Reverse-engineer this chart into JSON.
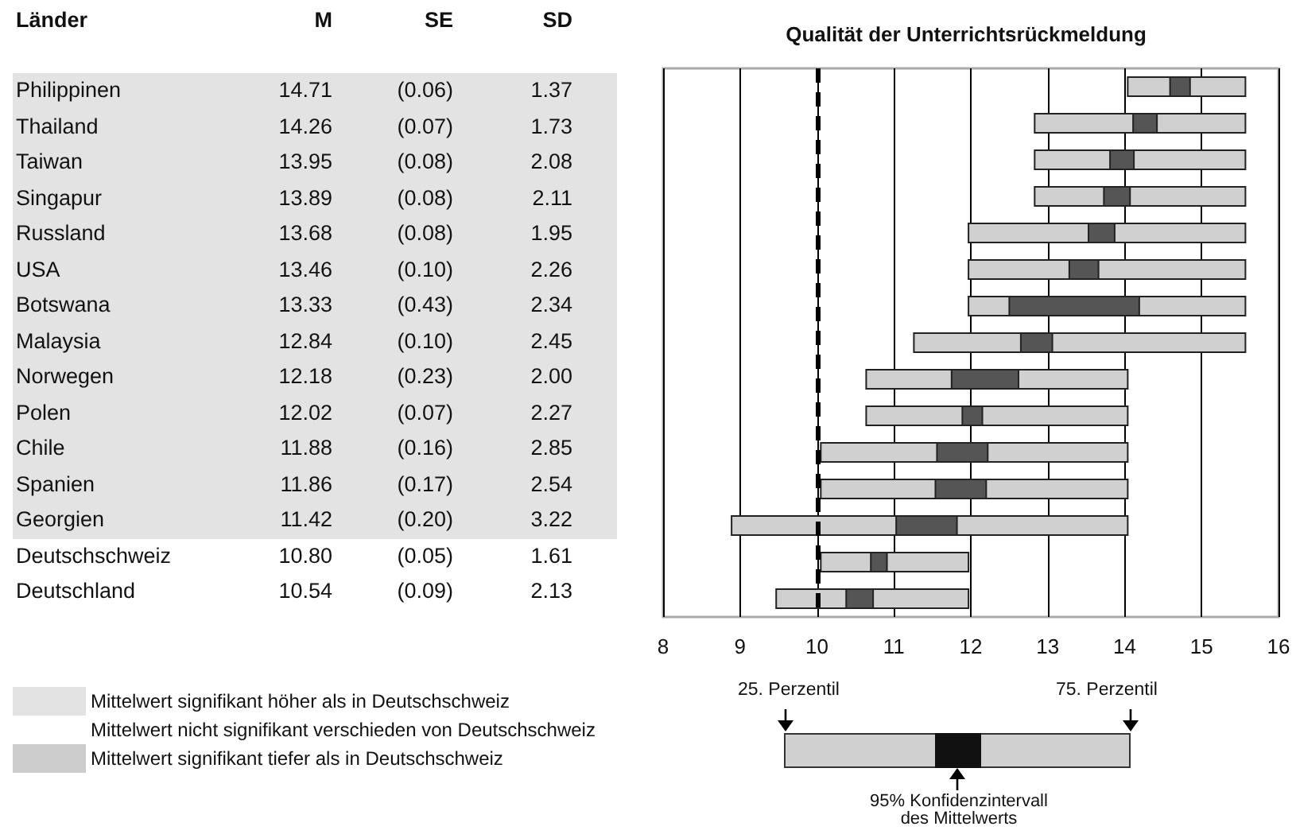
{
  "chart_data": [
    {
      "type": "other",
      "ylabel": "Länder",
      "categories": [
        "Philippinen",
        "Thailand",
        "Taiwan",
        "Singapur",
        "Russland",
        "USA",
        "Botswana",
        "Malaysia",
        "Norwegen",
        "Polen",
        "Chile",
        "Spanien",
        "Georgien",
        "Deutschschweiz",
        "Deutschland"
      ],
      "series": [
        {
          "name": "M",
          "colors": [
            "#e3e3e3",
            "#e3e3e3",
            "#e3e3e3",
            "#e3e3e3",
            "#e3e3e3",
            "#e3e3e3",
            "#e3e3e3",
            "#e3e3e3",
            "#e3e3e3",
            "#e3e3e3",
            "#e3e3e3",
            "#e3e3e3",
            "#e3e3e3",
            "#ffffff",
            "#ffffff"
          ],
          "values": [
            14.71,
            14.26,
            13.95,
            13.89,
            13.68,
            13.46,
            13.33,
            12.84,
            12.18,
            12.02,
            11.88,
            11.86,
            11.42,
            10.8,
            10.54
          ],
          "value_labels": [
            "14.71",
            "14.26",
            "13.95",
            "13.89",
            "13.68",
            "13.46",
            "13.33",
            "12.84",
            "12.18",
            "12.02",
            "11.88",
            "11.86",
            "11.42",
            "10.80",
            "10.54"
          ]
        },
        {
          "name": "SE",
          "values": [
            0.06,
            0.07,
            0.08,
            0.08,
            0.08,
            0.1,
            0.43,
            0.1,
            0.23,
            0.07,
            0.16,
            0.17,
            0.2,
            0.05,
            0.09
          ],
          "value_labels": [
            "(0.06)",
            "(0.07)",
            "(0.08)",
            "(0.08)",
            "(0.08)",
            "(0.10)",
            "(0.43)",
            "(0.10)",
            "(0.23)",
            "(0.07)",
            "(0.16)",
            "(0.17)",
            "(0.20)",
            "(0.05)",
            "(0.09)"
          ]
        },
        {
          "name": "SD",
          "values": [
            1.37,
            1.73,
            2.08,
            2.11,
            1.95,
            2.26,
            2.34,
            2.45,
            2,
            2.27,
            2.85,
            2.54,
            3.22,
            1.61,
            2.13
          ],
          "value_labels": [
            "1.37",
            "1.73",
            "2.08",
            "2.11",
            "1.95",
            "2.26",
            "2.34",
            "2.45",
            "2.00",
            "2.27",
            "2.85",
            "2.54",
            "3.22",
            "1.61",
            "2.13"
          ]
        }
      ],
      "annotations": [
        "Mittelwert signifikant höher als in Deutschschweiz",
        "Mittelwert nicht signifikant verschieden von Deutschschweiz",
        "Mittelwert signifikant tiefer als in Deutschschweiz"
      ]
    },
    {
      "type": "bar",
      "orientation": "horizontal",
      "title": "Qualität der Unterrichtsrückmeldung",
      "categories": [
        null,
        null,
        null,
        null,
        null,
        null,
        null,
        null,
        null,
        null,
        null,
        null,
        null,
        null,
        null
      ],
      "series": [
        {
          "color": "#d0d0d0",
          "base": [
            14.04,
            12.83,
            12.83,
            12.83,
            11.97,
            11.97,
            11.97,
            11.26,
            10.64,
            10.64,
            10.05,
            10.05,
            8.89,
            10.05,
            9.47
          ],
          "values": [
            1.53,
            2.74,
            2.74,
            2.74,
            3.6,
            3.6,
            3.6,
            4.31,
            3.4,
            3.4,
            3.99,
            3.99,
            5.15,
            1.92,
            2.5
          ]
        },
        {
          "color": "#555555",
          "base": [
            14.59,
            14.11,
            13.81,
            13.73,
            13.53,
            13.28,
            12.5,
            12.65,
            11.75,
            11.89,
            11.56,
            11.54,
            11.03,
            10.7,
            10.38
          ],
          "values": [
            0.26,
            0.31,
            0.31,
            0.34,
            0.34,
            0.38,
            1.69,
            0.41,
            0.87,
            0.26,
            0.66,
            0.66,
            0.79,
            0.21,
            0.35
          ]
        }
      ],
      "xlim": [
        8,
        16
      ],
      "xticks": [
        8,
        9,
        10,
        11,
        12,
        13,
        14,
        15,
        16
      ],
      "grid": "x",
      "tick_labels": "x",
      "ref_lines": [
        {
          "axis": "x",
          "value": 10,
          "line_style": "dashed",
          "color": "#000000"
        }
      ],
      "annotations": [
        "25. Perzentil",
        "75. Perzentil",
        "95% Konfidenzintervall des Mittelwerts"
      ]
    }
  ]
}
